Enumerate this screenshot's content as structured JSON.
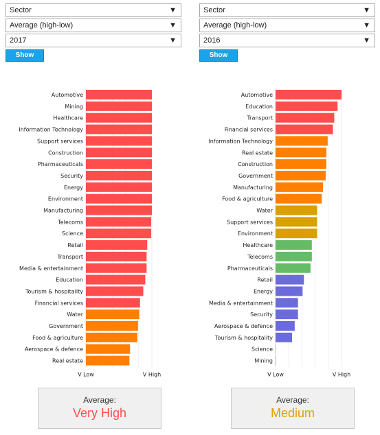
{
  "left": {
    "filter_sector": "Sector",
    "filter_measure": "Average (high-low)",
    "filter_year": "2017",
    "show_label": "Show",
    "average_label": "Average:",
    "average_value": "Very High",
    "average_color": "#ff4d4d"
  },
  "right": {
    "filter_sector": "Sector",
    "filter_measure": "Average (high-low)",
    "filter_year": "2016",
    "show_label": "Show",
    "average_label": "Average:",
    "average_value": "Medium",
    "average_color": "#e0a000"
  },
  "colors": {
    "very_high": "#ff4d4d",
    "high": "#ff7f00",
    "medium": "#d8a000",
    "low": "#66bb66",
    "very_low": "#6b6bdc",
    "none": "#c0c0c0"
  },
  "chart_data": [
    {
      "type": "bar",
      "orientation": "horizontal",
      "xlabel_low": "V Low",
      "xlabel_high": "V High",
      "xlim": [
        0,
        1
      ],
      "categories": [
        "Automotive",
        "Mining",
        "Healthcare",
        "Information Technology",
        "Support services",
        "Construction",
        "Pharmaceuticals",
        "Security",
        "Energy",
        "Environment",
        "Manufacturing",
        "Telecoms",
        "Science",
        "Retail",
        "Transport",
        "Media & entertainment",
        "Education",
        "Tourism & hospitality",
        "Financial services",
        "Water",
        "Government",
        "Food & agriculture",
        "Aerospace & defence",
        "Real estate"
      ],
      "values": [
        1.0,
        1.0,
        1.0,
        1.0,
        1.0,
        1.0,
        1.0,
        1.0,
        1.0,
        1.0,
        1.0,
        0.99,
        0.99,
        0.93,
        0.92,
        0.92,
        0.9,
        0.87,
        0.82,
        0.81,
        0.79,
        0.78,
        0.67,
        0.66
      ],
      "levels": [
        "very_high",
        "very_high",
        "very_high",
        "very_high",
        "very_high",
        "very_high",
        "very_high",
        "very_high",
        "very_high",
        "very_high",
        "very_high",
        "very_high",
        "very_high",
        "very_high",
        "very_high",
        "very_high",
        "very_high",
        "very_high",
        "very_high",
        "high",
        "high",
        "high",
        "high",
        "high"
      ]
    },
    {
      "type": "bar",
      "orientation": "horizontal",
      "xlabel_low": "V Low",
      "xlabel_high": "V High",
      "xlim": [
        0,
        1
      ],
      "categories": [
        "Automotive",
        "Education",
        "Transport",
        "Financial services",
        "Information Technology",
        "Real estate",
        "Construction",
        "Government",
        "Manufacturing",
        "Food & agriculture",
        "Water",
        "Support services",
        "Environment",
        "Healthcare",
        "Telecoms",
        "Pharmaceuticals",
        "Retail",
        "Energy",
        "Media & entertainment",
        "Security",
        "Aerospace & defence",
        "Tourism & hospitality",
        "Science",
        "Mining"
      ],
      "values": [
        1.0,
        0.94,
        0.89,
        0.87,
        0.79,
        0.77,
        0.77,
        0.76,
        0.72,
        0.7,
        0.63,
        0.63,
        0.63,
        0.55,
        0.55,
        0.53,
        0.43,
        0.41,
        0.34,
        0.34,
        0.29,
        0.25,
        0.01,
        0.01
      ],
      "levels": [
        "very_high",
        "very_high",
        "very_high",
        "very_high",
        "high",
        "high",
        "high",
        "high",
        "high",
        "high",
        "medium",
        "medium",
        "medium",
        "low",
        "low",
        "low",
        "very_low",
        "very_low",
        "very_low",
        "very_low",
        "very_low",
        "very_low",
        "none",
        "none"
      ]
    }
  ]
}
